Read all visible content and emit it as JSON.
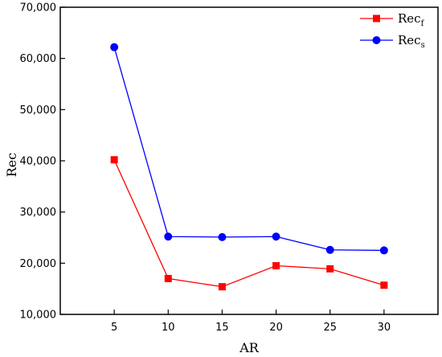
{
  "chart_data": {
    "type": "line",
    "title": "",
    "xlabel": "AR",
    "ylabel": "Rec",
    "x": [
      5,
      10,
      15,
      20,
      25,
      30
    ],
    "x_tick_labels": [
      "5",
      "10",
      "15",
      "20",
      "25",
      "30"
    ],
    "xlim": [
      0,
      35
    ],
    "ylim": [
      10000,
      70000
    ],
    "y_ticks": [
      10000,
      20000,
      30000,
      40000,
      50000,
      60000,
      70000
    ],
    "y_tick_labels": [
      "10,000",
      "20,000",
      "30,000",
      "40,000",
      "50,000",
      "60,000",
      "70,000"
    ],
    "grid": false,
    "legend_position": "top-right",
    "series": [
      {
        "name": "Rec",
        "subscript": "f",
        "color": "#ff0000",
        "marker": "square",
        "values": [
          40200,
          17000,
          15400,
          19500,
          18900,
          15700
        ]
      },
      {
        "name": "Rec",
        "subscript": "s",
        "color": "#0000ff",
        "marker": "circle",
        "values": [
          62200,
          25200,
          25100,
          25200,
          22600,
          22500
        ]
      }
    ]
  }
}
